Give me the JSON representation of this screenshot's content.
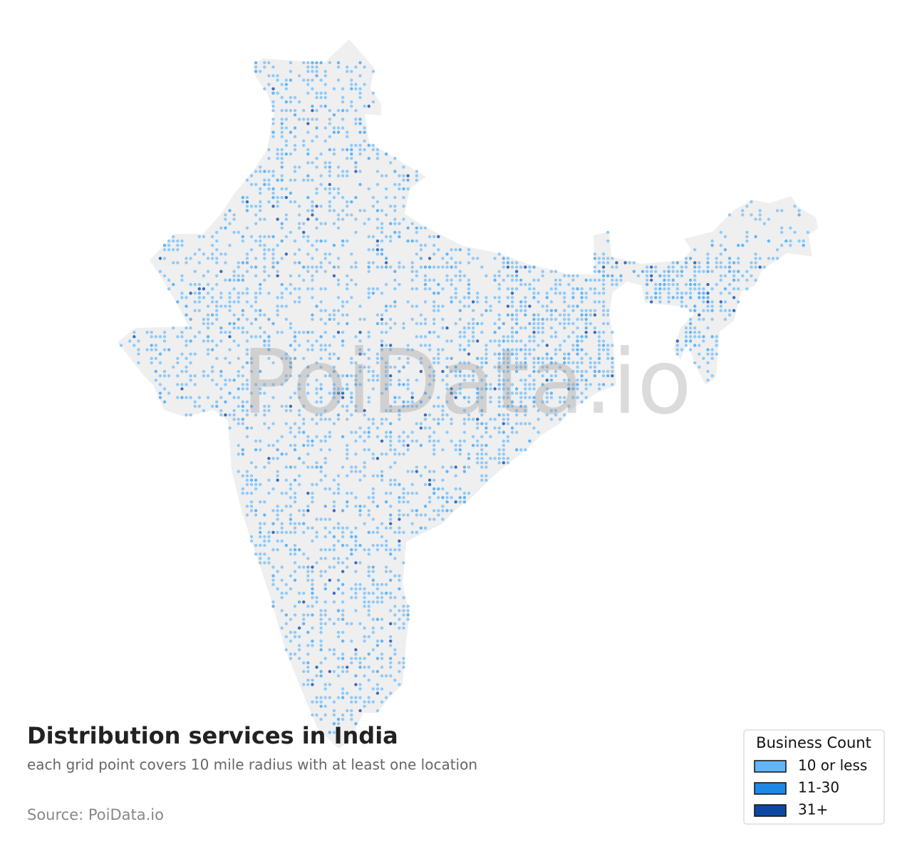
{
  "title": "Distribution services in India",
  "subtitle": "each grid point covers 10 mile radius with at least one location",
  "source": "Source: PoiData.io",
  "watermark": "PoiData.io",
  "legend": {
    "title": "Business Count",
    "items": [
      {
        "label": "10 or less",
        "color": "#64b5f6"
      },
      {
        "label": "11-30",
        "color": "#1e88e5"
      },
      {
        "label": "31+",
        "color": "#0d47a1"
      }
    ]
  }
}
